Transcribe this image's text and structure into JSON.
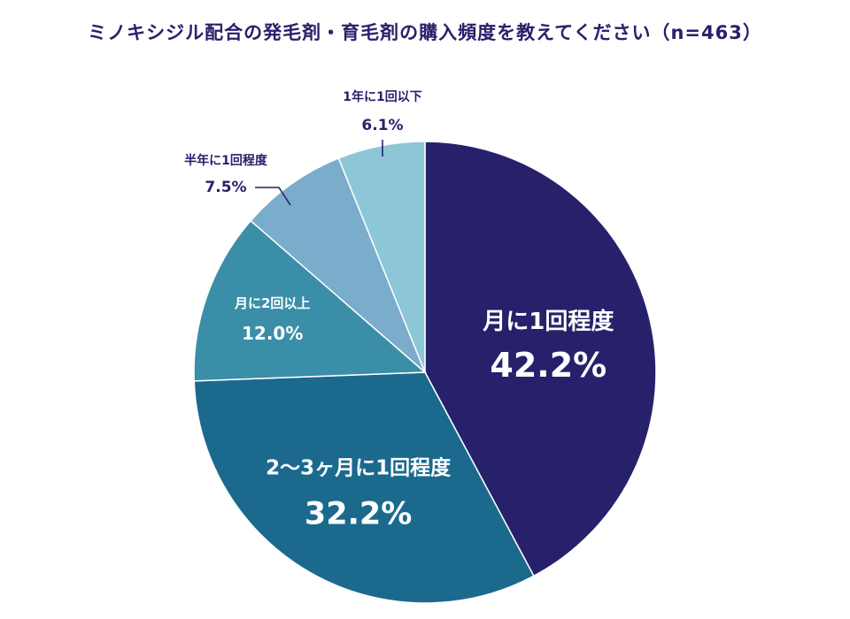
{
  "chart_data": {
    "type": "pie",
    "title": "ミノキシジル配合の発毛剤・育毛剤の購入頻度を教えてください（n=463）",
    "slices": [
      {
        "label": "月に1回程度",
        "value": 42.2,
        "value_label": "42.2%",
        "color": "#27216b",
        "label_position": "inside"
      },
      {
        "label": "2〜3ヶ月に1回程度",
        "value": 32.2,
        "value_label": "32.2%",
        "color": "#1b6a8e",
        "label_position": "inside"
      },
      {
        "label": "月に2回以上",
        "value": 12.0,
        "value_label": "12.0%",
        "color": "#3a8ea8",
        "label_position": "inside"
      },
      {
        "label": "半年に1回程度",
        "value": 7.5,
        "value_label": "7.5%",
        "color": "#7aaccc",
        "label_position": "outside"
      },
      {
        "label": "1年に1回以下",
        "value": 6.1,
        "value_label": "6.1%",
        "color": "#8dc6d6",
        "label_position": "outside"
      }
    ],
    "start": "12 o'clock",
    "direction": "clockwise",
    "legend": "none",
    "colors": {
      "title": "#27216b",
      "outside_label": "#27216b",
      "inside_label": "#ffffff",
      "leader_line": "#27216b",
      "slice_border": "#ffffff"
    }
  }
}
